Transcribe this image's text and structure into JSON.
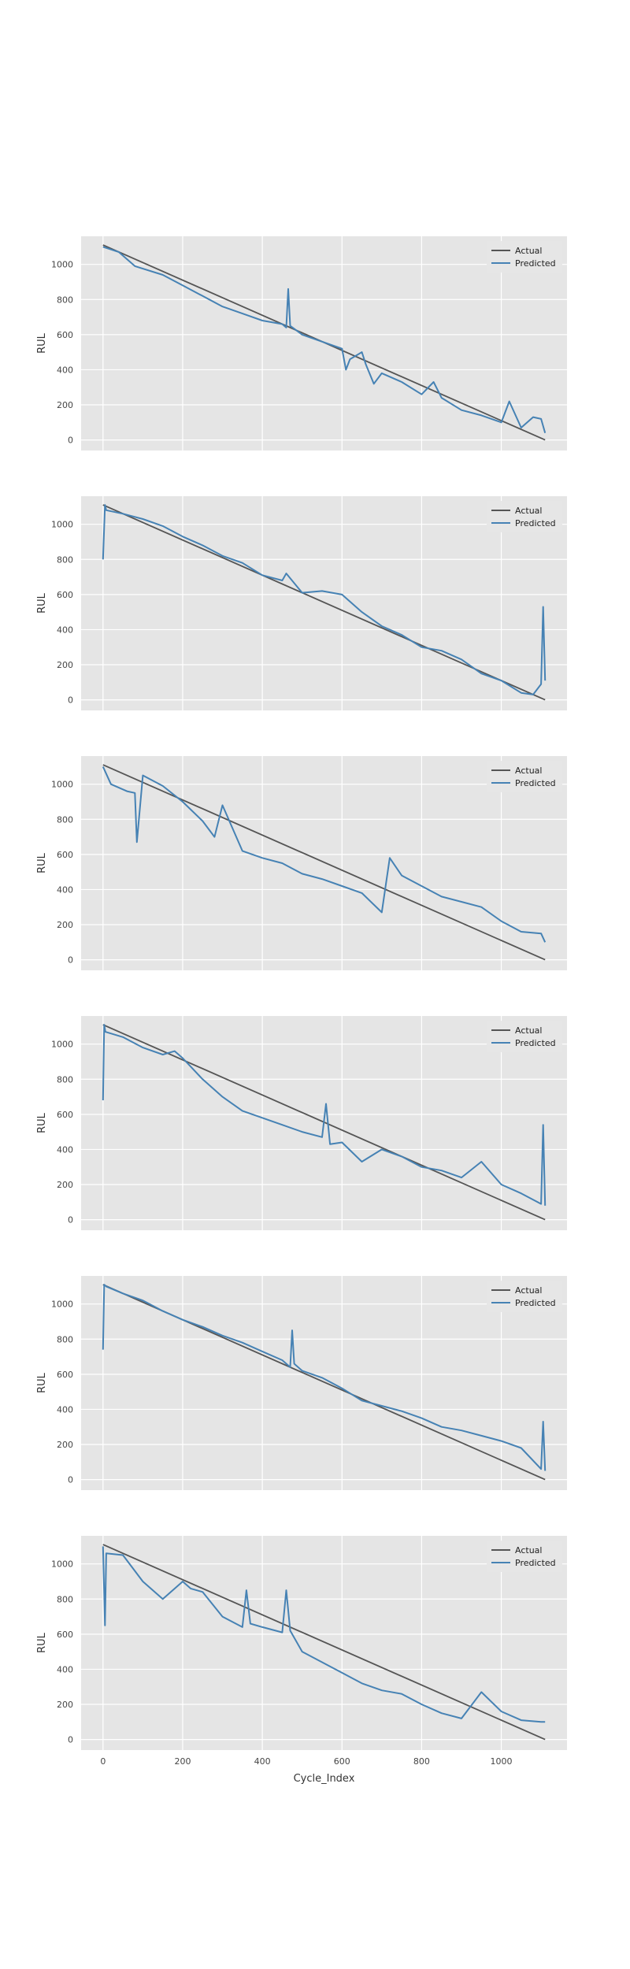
{
  "chart_data": [
    {
      "type": "line",
      "xlabel": "",
      "ylabel": "RUL",
      "xlim": [
        -55,
        1165
      ],
      "ylim": [
        -60,
        1160
      ],
      "xticks": [
        0,
        200,
        400,
        600,
        800,
        1000
      ],
      "yticks": [
        0,
        200,
        400,
        600,
        800,
        1000
      ],
      "grid": true,
      "legend_position": "top-right",
      "show_x_tick_labels": false,
      "series": [
        {
          "name": "Actual",
          "color": "#555555",
          "x": [
            0,
            1110
          ],
          "y": [
            1110,
            0
          ]
        },
        {
          "name": "Predicted",
          "color": "#4682b4",
          "x": [
            0,
            40,
            80,
            150,
            200,
            250,
            300,
            350,
            400,
            450,
            460,
            465,
            470,
            500,
            550,
            600,
            610,
            620,
            650,
            660,
            680,
            700,
            750,
            800,
            830,
            850,
            900,
            950,
            1000,
            1020,
            1050,
            1080,
            1100,
            1110
          ],
          "y": [
            1100,
            1070,
            990,
            940,
            880,
            820,
            760,
            720,
            680,
            660,
            640,
            860,
            650,
            600,
            560,
            520,
            400,
            460,
            500,
            430,
            320,
            380,
            330,
            260,
            330,
            240,
            170,
            140,
            100,
            220,
            70,
            130,
            120,
            40
          ]
        }
      ]
    },
    {
      "type": "line",
      "xlabel": "",
      "ylabel": "RUL",
      "xlim": [
        -55,
        1165
      ],
      "ylim": [
        -60,
        1160
      ],
      "xticks": [
        0,
        200,
        400,
        600,
        800,
        1000
      ],
      "yticks": [
        0,
        200,
        400,
        600,
        800,
        1000
      ],
      "grid": true,
      "legend_position": "top-right",
      "show_x_tick_labels": false,
      "series": [
        {
          "name": "Actual",
          "color": "#555555",
          "x": [
            0,
            1110
          ],
          "y": [
            1110,
            0
          ]
        },
        {
          "name": "Predicted",
          "color": "#4682b4",
          "x": [
            0,
            5,
            8,
            50,
            100,
            150,
            200,
            250,
            300,
            350,
            400,
            450,
            460,
            500,
            550,
            600,
            650,
            700,
            750,
            800,
            850,
            900,
            950,
            1000,
            1050,
            1080,
            1100,
            1105,
            1110
          ],
          "y": [
            800,
            1110,
            1080,
            1060,
            1030,
            990,
            930,
            880,
            820,
            780,
            710,
            680,
            720,
            610,
            620,
            600,
            500,
            420,
            370,
            300,
            280,
            230,
            150,
            110,
            40,
            30,
            90,
            530,
            110
          ]
        }
      ]
    },
    {
      "type": "line",
      "xlabel": "",
      "ylabel": "RUL",
      "xlim": [
        -55,
        1165
      ],
      "ylim": [
        -60,
        1160
      ],
      "xticks": [
        0,
        200,
        400,
        600,
        800,
        1000
      ],
      "yticks": [
        0,
        200,
        400,
        600,
        800,
        1000
      ],
      "grid": true,
      "legend_position": "top-right",
      "show_x_tick_labels": false,
      "series": [
        {
          "name": "Actual",
          "color": "#555555",
          "x": [
            0,
            1110
          ],
          "y": [
            1110,
            0
          ]
        },
        {
          "name": "Predicted",
          "color": "#4682b4",
          "x": [
            0,
            20,
            60,
            80,
            85,
            100,
            150,
            200,
            250,
            280,
            300,
            350,
            400,
            450,
            500,
            550,
            600,
            650,
            700,
            720,
            750,
            800,
            850,
            900,
            950,
            1000,
            1050,
            1100,
            1110
          ],
          "y": [
            1100,
            1000,
            960,
            950,
            670,
            1050,
            990,
            900,
            790,
            700,
            880,
            620,
            580,
            550,
            490,
            460,
            420,
            380,
            270,
            580,
            480,
            420,
            360,
            330,
            300,
            220,
            160,
            150,
            100
          ]
        }
      ]
    },
    {
      "type": "line",
      "xlabel": "",
      "ylabel": "RUL",
      "xlim": [
        -55,
        1165
      ],
      "ylim": [
        -60,
        1160
      ],
      "xticks": [
        0,
        200,
        400,
        600,
        800,
        1000
      ],
      "yticks": [
        0,
        200,
        400,
        600,
        800,
        1000
      ],
      "grid": true,
      "legend_position": "top-right",
      "show_x_tick_labels": false,
      "series": [
        {
          "name": "Actual",
          "color": "#555555",
          "x": [
            0,
            1110
          ],
          "y": [
            1110,
            0
          ]
        },
        {
          "name": "Predicted",
          "color": "#4682b4",
          "x": [
            0,
            3,
            6,
            50,
            100,
            150,
            180,
            200,
            250,
            300,
            350,
            400,
            450,
            500,
            550,
            560,
            570,
            600,
            650,
            700,
            750,
            800,
            850,
            900,
            950,
            1000,
            1050,
            1100,
            1105,
            1110
          ],
          "y": [
            680,
            1110,
            1070,
            1040,
            980,
            940,
            960,
            920,
            800,
            700,
            620,
            580,
            540,
            500,
            470,
            660,
            430,
            440,
            330,
            400,
            360,
            300,
            280,
            240,
            330,
            200,
            150,
            90,
            540,
            80
          ]
        }
      ]
    },
    {
      "type": "line",
      "xlabel": "",
      "ylabel": "RUL",
      "xlim": [
        -55,
        1165
      ],
      "ylim": [
        -60,
        1160
      ],
      "xticks": [
        0,
        200,
        400,
        600,
        800,
        1000
      ],
      "yticks": [
        0,
        200,
        400,
        600,
        800,
        1000
      ],
      "grid": true,
      "legend_position": "top-right",
      "show_x_tick_labels": false,
      "series": [
        {
          "name": "Actual",
          "color": "#555555",
          "x": [
            0,
            1110
          ],
          "y": [
            1110,
            0
          ]
        },
        {
          "name": "Predicted",
          "color": "#4682b4",
          "x": [
            0,
            3,
            8,
            50,
            100,
            150,
            200,
            250,
            300,
            350,
            400,
            450,
            470,
            475,
            480,
            500,
            550,
            600,
            650,
            700,
            750,
            800,
            850,
            900,
            950,
            1000,
            1050,
            1100,
            1105,
            1110
          ],
          "y": [
            740,
            1110,
            1100,
            1060,
            1020,
            960,
            910,
            870,
            820,
            780,
            730,
            680,
            640,
            850,
            660,
            620,
            580,
            520,
            450,
            420,
            390,
            350,
            300,
            280,
            250,
            220,
            180,
            60,
            330,
            50
          ]
        }
      ]
    },
    {
      "type": "line",
      "xlabel": "Cycle_Index",
      "ylabel": "RUL",
      "xlim": [
        -55,
        1165
      ],
      "ylim": [
        -60,
        1160
      ],
      "xticks": [
        0,
        200,
        400,
        600,
        800,
        1000
      ],
      "yticks": [
        0,
        200,
        400,
        600,
        800,
        1000
      ],
      "grid": true,
      "legend_position": "top-right",
      "show_x_tick_labels": true,
      "series": [
        {
          "name": "Actual",
          "color": "#555555",
          "x": [
            0,
            1110
          ],
          "y": [
            1110,
            0
          ]
        },
        {
          "name": "Predicted",
          "color": "#4682b4",
          "x": [
            0,
            5,
            8,
            50,
            100,
            150,
            200,
            220,
            250,
            300,
            350,
            360,
            370,
            400,
            450,
            460,
            470,
            500,
            550,
            600,
            650,
            700,
            750,
            800,
            850,
            900,
            950,
            1000,
            1050,
            1100,
            1110
          ],
          "y": [
            1100,
            650,
            1060,
            1050,
            900,
            800,
            900,
            860,
            840,
            700,
            640,
            850,
            660,
            640,
            610,
            850,
            620,
            500,
            440,
            380,
            320,
            280,
            260,
            200,
            150,
            120,
            270,
            160,
            110,
            100,
            100
          ]
        }
      ]
    }
  ]
}
